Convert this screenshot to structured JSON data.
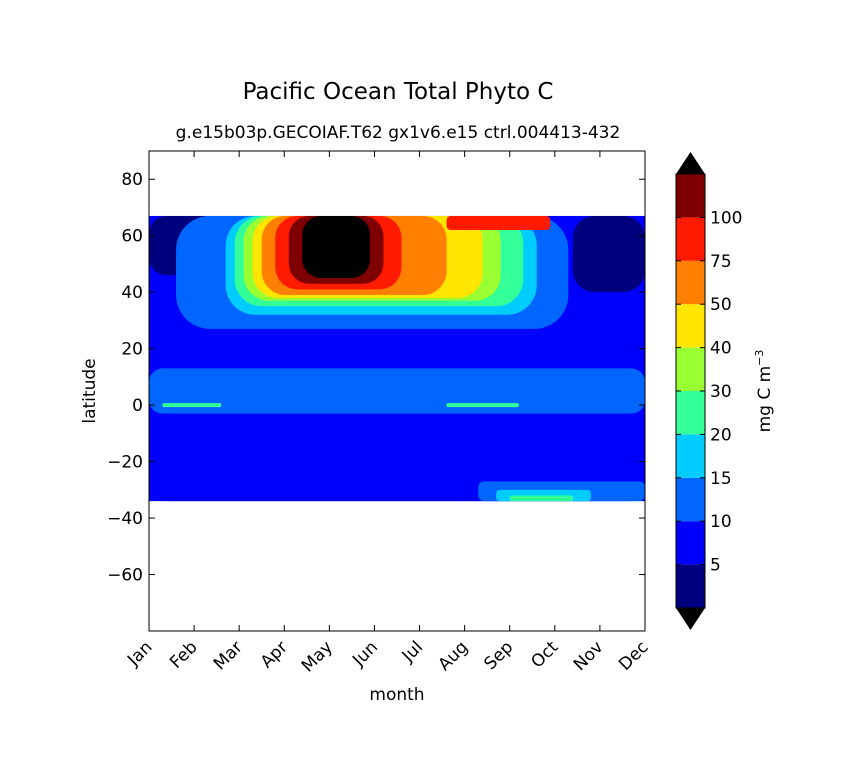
{
  "chart_data": {
    "type": "filled-contour",
    "title": "Pacific Ocean Total Phyto C",
    "subtitle": "g.e15b03p.GECOIAF.T62 gx1v6.e15 ctrl.004413-432",
    "xlabel": "month",
    "ylabel": "latitude",
    "x_categories": [
      "Jan",
      "Feb",
      "Mar",
      "Apr",
      "May",
      "Jun",
      "Jul",
      "Aug",
      "Sep",
      "Oct",
      "Nov",
      "Dec"
    ],
    "ylim": [
      -80,
      90
    ],
    "y_ticks": [
      "80",
      "60",
      "40",
      "20",
      "0",
      "−20",
      "−40",
      "−60"
    ],
    "y_tick_values": [
      80,
      60,
      40,
      20,
      0,
      -20,
      -40,
      -60
    ],
    "data_lat_range": [
      -34,
      67
    ],
    "colorbar": {
      "label": "mg C m",
      "label_exponent": "−3",
      "levels": [
        0,
        5,
        10,
        15,
        20,
        30,
        40,
        50,
        75,
        100,
        120
      ],
      "tick_labels": [
        "5",
        "10",
        "15",
        "20",
        "30",
        "40",
        "50",
        "75",
        "100"
      ],
      "tick_values": [
        5,
        10,
        15,
        20,
        30,
        40,
        50,
        75,
        100
      ],
      "colors": [
        "#00007f",
        "#0000ff",
        "#0066ff",
        "#00ccff",
        "#33ff99",
        "#99ff33",
        "#ffe500",
        "#ff7f00",
        "#ff1a00",
        "#7f0000"
      ],
      "extend_min_color": "#000000",
      "extend_max_color": "#000000"
    },
    "background_level_color": "#0000ff",
    "regions": [
      {
        "name": "equatorial-band",
        "months": [
          0,
          11
        ],
        "lat": [
          -3,
          13
        ],
        "value": 12
      },
      {
        "name": "southern-subtropics",
        "months": [
          0,
          11
        ],
        "lat": [
          -34,
          -12
        ],
        "value": 7
      },
      {
        "name": "south-upwelling-15",
        "months": [
          7.3,
          11
        ],
        "lat": [
          -34,
          -27
        ],
        "value": 12
      },
      {
        "name": "south-upwelling-20",
        "months": [
          7.7,
          9.8
        ],
        "lat": [
          -34,
          -30
        ],
        "value": 17
      },
      {
        "name": "south-upwelling-30",
        "months": [
          8.0,
          9.4
        ],
        "lat": [
          -34,
          -32
        ],
        "value": 25
      },
      {
        "name": "equator-30",
        "months": [
          0.3,
          1.6
        ],
        "lat": [
          -0.7,
          0.7
        ],
        "value": 25
      },
      {
        "name": "equator-30-b",
        "months": [
          6.6,
          8.2
        ],
        "lat": [
          -0.7,
          0.7
        ],
        "value": 25
      },
      {
        "name": "subarctic-winter-west",
        "months": [
          0,
          2.2
        ],
        "lat": [
          46,
          67
        ],
        "value": 3
      },
      {
        "name": "subarctic-winter-east",
        "months": [
          9.4,
          11
        ],
        "lat": [
          40,
          67
        ],
        "value": 3
      },
      {
        "name": "bloom-10",
        "months": [
          0.6,
          9.3
        ],
        "lat": [
          27,
          67
        ],
        "value": 12
      },
      {
        "name": "bloom-15",
        "months": [
          1.7,
          8.6
        ],
        "lat": [
          32,
          67
        ],
        "value": 17
      },
      {
        "name": "bloom-20",
        "months": [
          1.9,
          8.3
        ],
        "lat": [
          35,
          67
        ],
        "value": 25
      },
      {
        "name": "bloom-30",
        "months": [
          2.1,
          7.8
        ],
        "lat": [
          37,
          67
        ],
        "value": 35
      },
      {
        "name": "bloom-40",
        "months": [
          2.3,
          7.4
        ],
        "lat": [
          38,
          67
        ],
        "value": 45
      },
      {
        "name": "bloom-50",
        "months": [
          2.5,
          6.6
        ],
        "lat": [
          39,
          67
        ],
        "value": 60
      },
      {
        "name": "bloom-75",
        "months": [
          2.8,
          5.6
        ],
        "lat": [
          41,
          67
        ],
        "value": 85
      },
      {
        "name": "bloom-100",
        "months": [
          3.1,
          5.2
        ],
        "lat": [
          43,
          67
        ],
        "value": 110
      },
      {
        "name": "bloom-120",
        "months": [
          3.4,
          4.9
        ],
        "lat": [
          45,
          67
        ],
        "value": 130
      },
      {
        "name": "arctic-edge-late",
        "months": [
          6.6,
          8.9
        ],
        "lat": [
          62,
          67
        ],
        "value": 85
      }
    ]
  }
}
